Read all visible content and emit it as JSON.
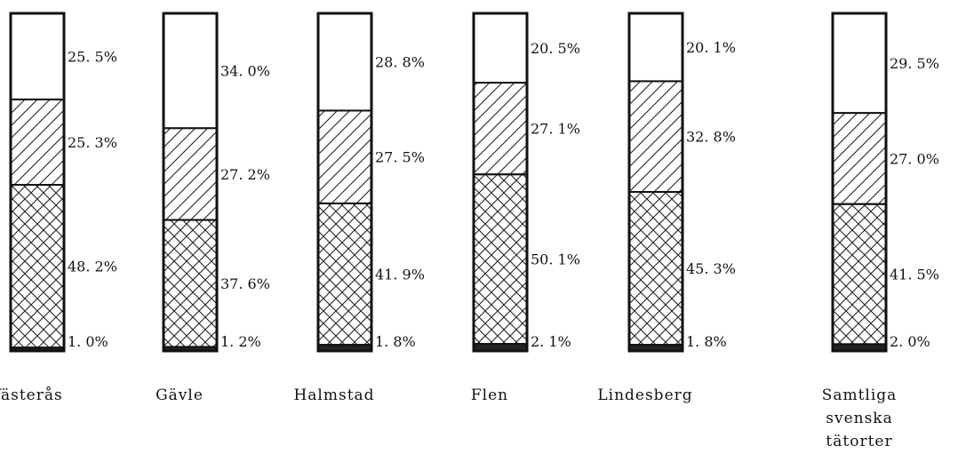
{
  "chart_data": {
    "type": "bar",
    "stacked": true,
    "orientation": "vertical",
    "percent_stacked": true,
    "categories": [
      "Västerås",
      "Gävle",
      "Halmstad",
      "Flen",
      "Lindesberg",
      [
        "Samtliga",
        "svenska",
        "tätorter"
      ]
    ],
    "series": [
      {
        "pattern": "solid",
        "values_label": [
          "1. 0%",
          "1. 2%",
          "1. 8%",
          "2. 1%",
          "1. 8%",
          "2. 0%"
        ],
        "values": [
          1.0,
          1.2,
          1.8,
          2.1,
          1.8,
          2.0
        ]
      },
      {
        "pattern": "crosshatch",
        "values_label": [
          "48. 2%",
          "37. 6%",
          "41. 9%",
          "50. 1%",
          "45. 3%",
          "41. 5%"
        ],
        "values": [
          48.2,
          37.6,
          41.9,
          50.1,
          45.3,
          41.5
        ]
      },
      {
        "pattern": "diagonal",
        "values_label": [
          "25. 3%",
          "27. 2%",
          "27. 5%",
          "27. 1%",
          "32. 8%",
          "27. 0%"
        ],
        "values": [
          25.3,
          27.2,
          27.5,
          27.1,
          32.8,
          27.0
        ]
      },
      {
        "pattern": "blank",
        "values_label": [
          "25. 5%",
          "34. 0%",
          "28. 8%",
          "20. 5%",
          "20. 1%",
          "29. 5%"
        ],
        "values": [
          25.5,
          34.0,
          28.8,
          20.5,
          20.1,
          29.5
        ]
      }
    ],
    "ylim": [
      0,
      100
    ],
    "grid": false,
    "legend": "none"
  }
}
